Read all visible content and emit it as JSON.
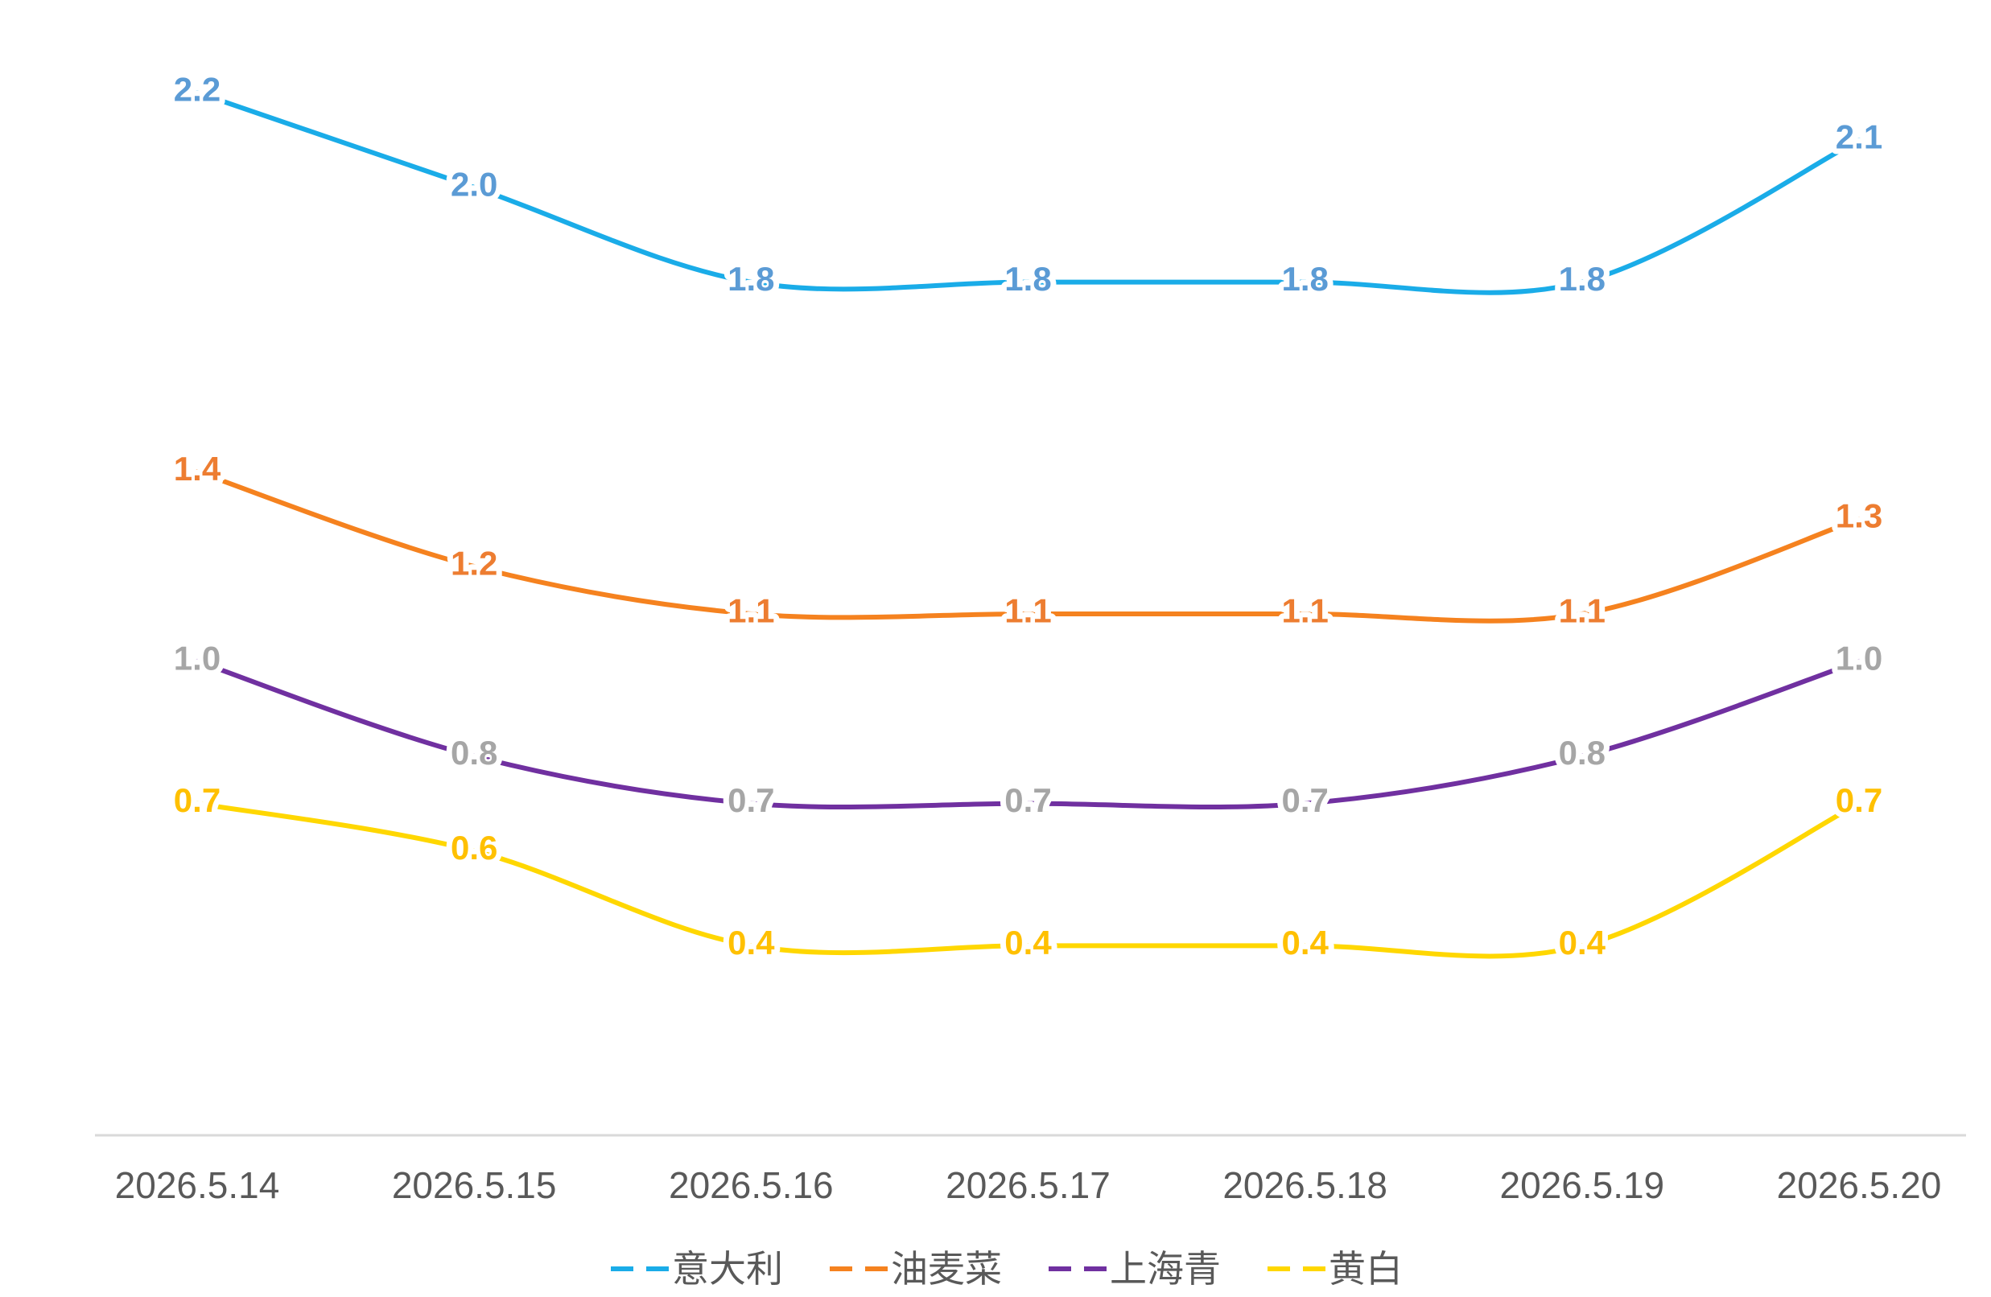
{
  "chart_data": {
    "type": "line",
    "categories": [
      "2026.5.14",
      "2026.5.15",
      "2026.5.16",
      "2026.5.17",
      "2026.5.18",
      "2026.5.19",
      "2026.5.20"
    ],
    "series": [
      {
        "name": "意大利",
        "color": "#1aace8",
        "label_color": "#5b9bd5",
        "values": [
          2.2,
          2.0,
          1.8,
          1.8,
          1.8,
          1.8,
          2.1
        ],
        "value_labels": [
          "2.2",
          "2.0",
          "1.8",
          "1.8",
          "1.8",
          "1.8",
          "2.1"
        ]
      },
      {
        "name": "油麦菜",
        "color": "#f5821f",
        "label_color": "#ed7d31",
        "values": [
          1.4,
          1.2,
          1.1,
          1.1,
          1.1,
          1.1,
          1.3
        ],
        "value_labels": [
          "1.4",
          "1.2",
          "1.1",
          "1.1",
          "1.1",
          "1.1",
          "1.3"
        ]
      },
      {
        "name": "上海青",
        "color": "#7030a0",
        "label_color": "#a6a6a6",
        "values": [
          1.0,
          0.8,
          0.7,
          0.7,
          0.7,
          0.8,
          1.0
        ],
        "value_labels": [
          "1.0",
          "0.8",
          "0.7",
          "0.7",
          "0.7",
          "0.8",
          "1.0"
        ]
      },
      {
        "name": "黄白",
        "color": "#ffd700",
        "label_color": "#ffc000",
        "values": [
          0.7,
          0.6,
          0.4,
          0.4,
          0.4,
          0.4,
          0.7
        ],
        "value_labels": [
          "0.7",
          "0.6",
          "0.4",
          "0.4",
          "0.4",
          "0.4",
          "0.7"
        ]
      }
    ],
    "smooth": true,
    "legend": "bottom"
  }
}
